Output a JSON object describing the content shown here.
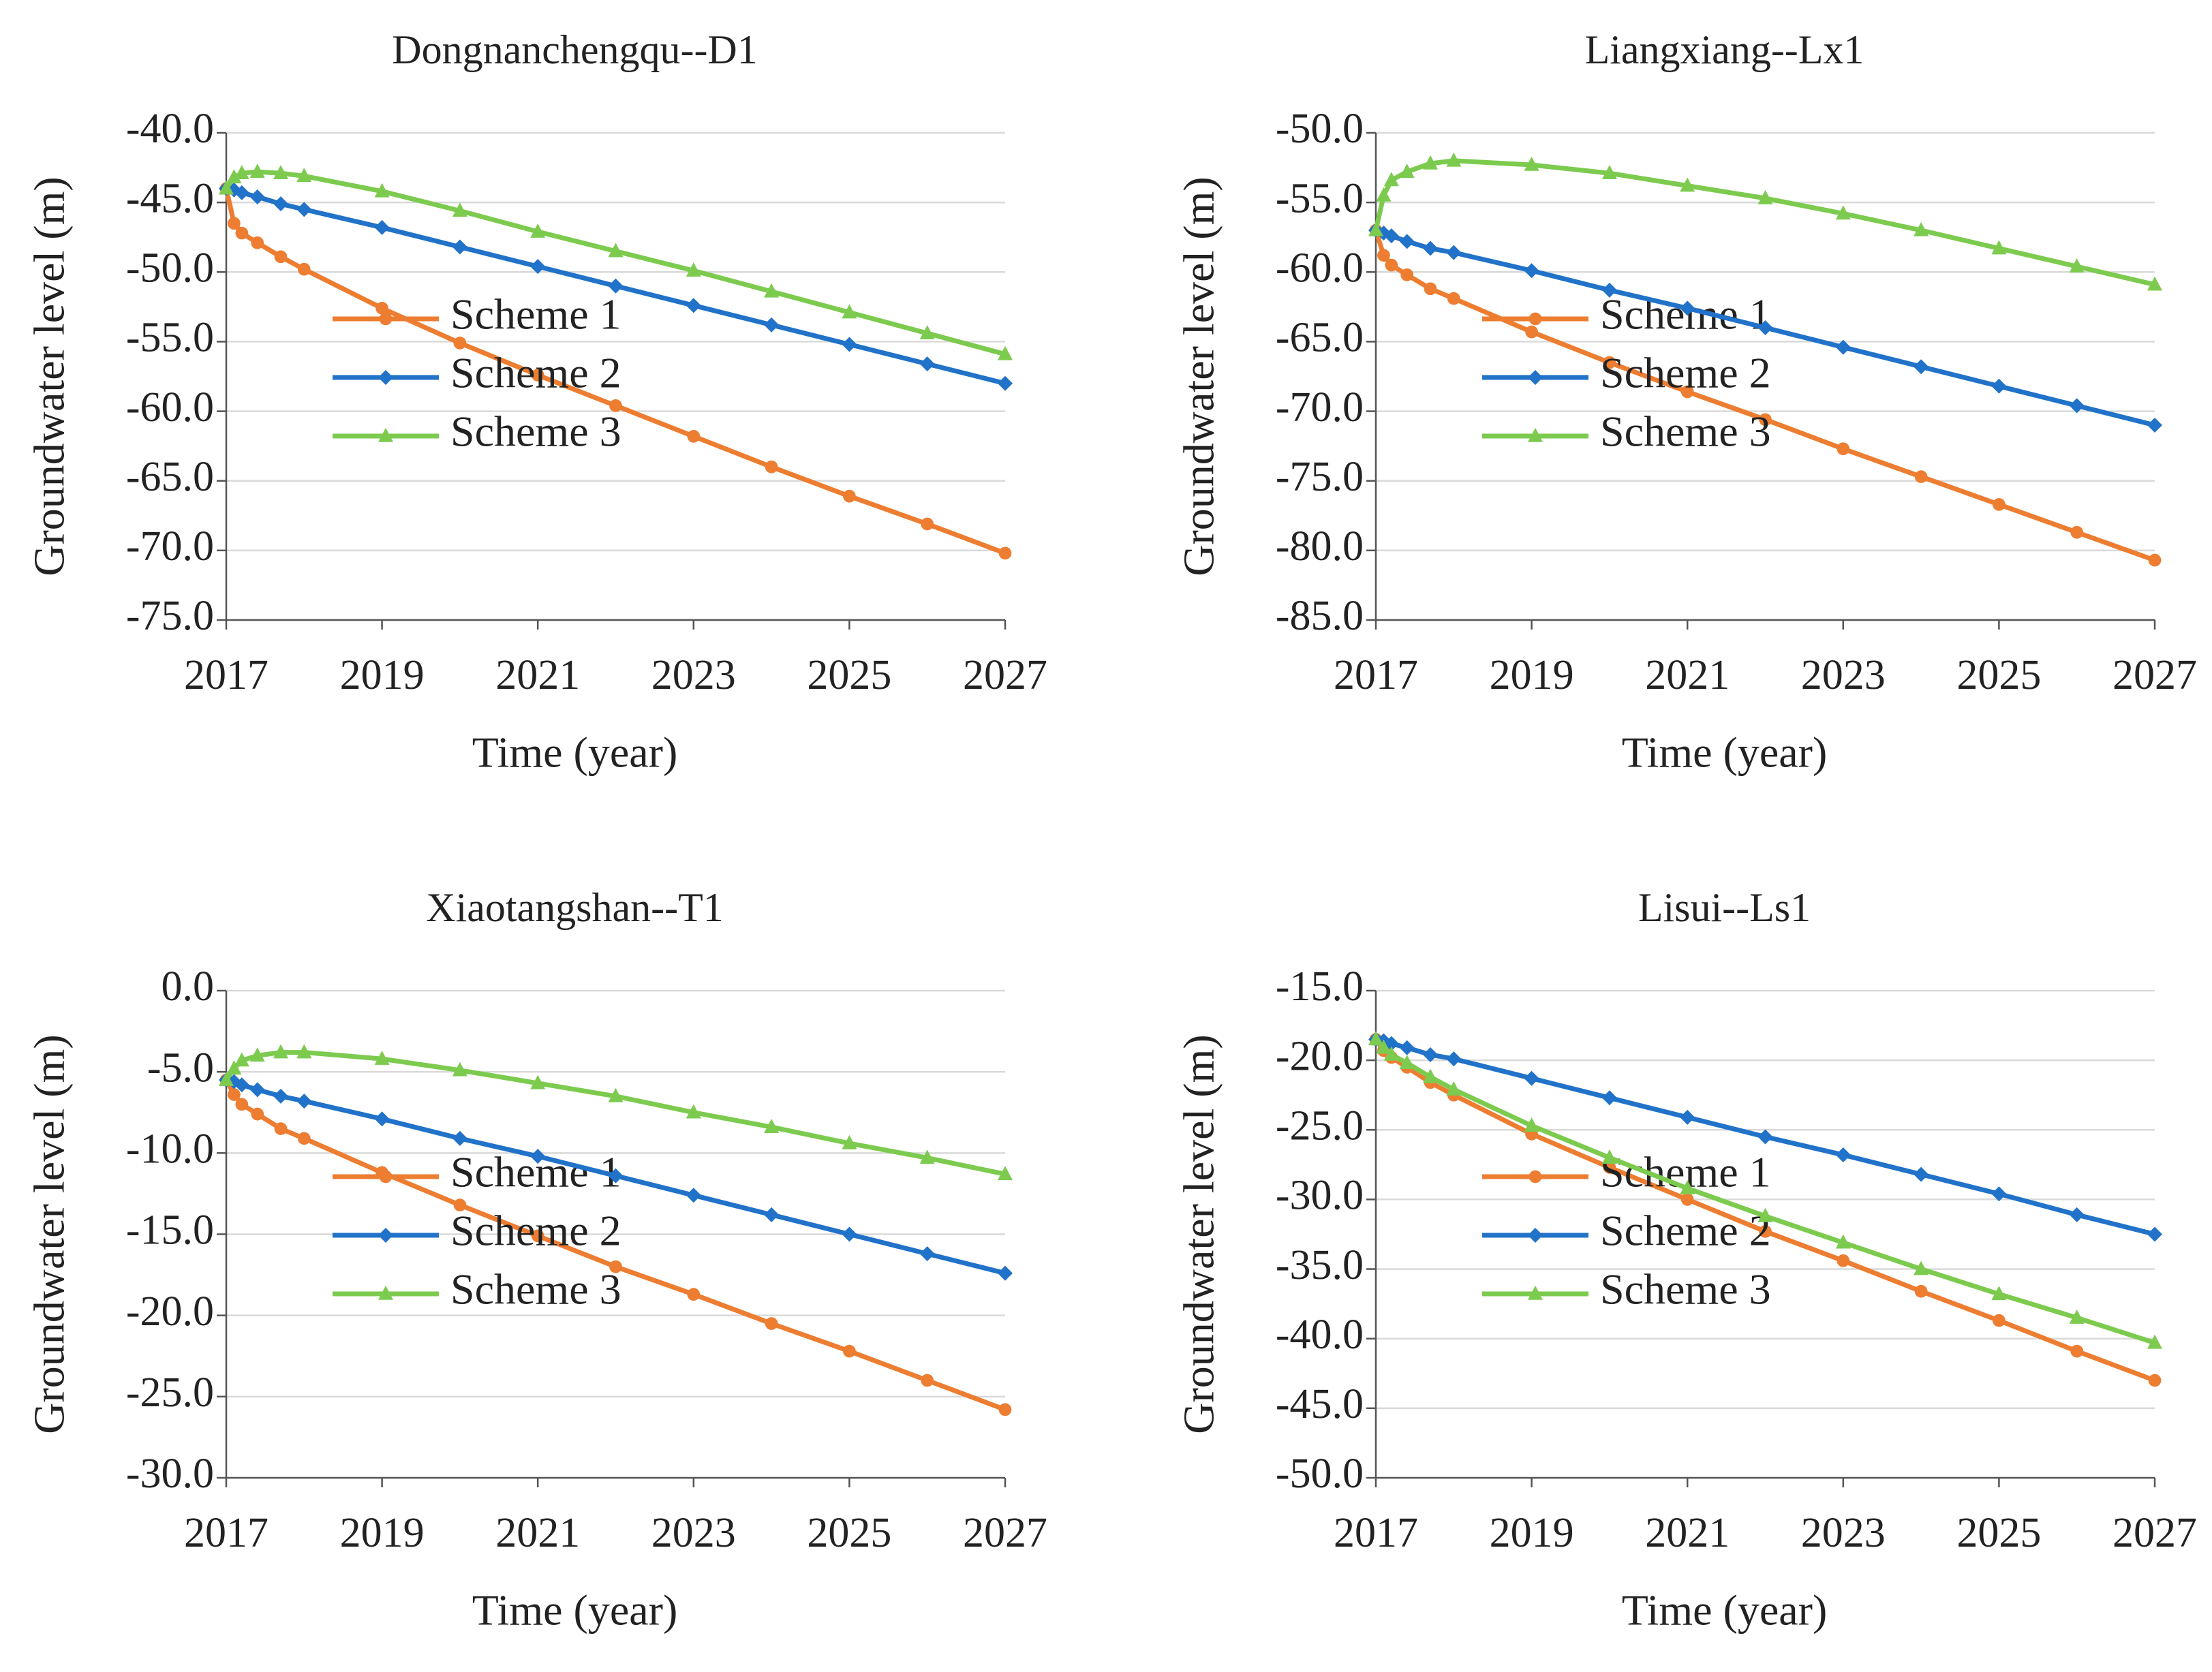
{
  "chart_data": [
    {
      "type": "line",
      "title": "Dongnanchengqu--D1",
      "x_label": "Time (year)",
      "y_label": "Groundwater level (m)",
      "x": [
        2017,
        2017.1,
        2017.2,
        2017.4,
        2017.7,
        2018,
        2019,
        2020,
        2021,
        2022,
        2023,
        2024,
        2025,
        2026,
        2027
      ],
      "xlim": [
        2017,
        2027
      ],
      "xticks": [
        2017,
        2019,
        2021,
        2023,
        2025,
        2027
      ],
      "ylim": [
        -75,
        -40
      ],
      "yticks": [
        {
          "value": -75,
          "label": "-75.0"
        },
        {
          "value": -70,
          "label": "-70.0"
        },
        {
          "value": -65,
          "label": "-65.0"
        },
        {
          "value": -60,
          "label": "-60.0"
        },
        {
          "value": -55,
          "label": "-55.0"
        },
        {
          "value": -50,
          "label": "-50.0"
        },
        {
          "value": -45,
          "label": "-45.0"
        },
        {
          "value": -40,
          "label": "-40.0"
        }
      ],
      "grid": true,
      "series": [
        {
          "name": "Scheme 1",
          "color": "#ED7D31",
          "marker": "circle",
          "values": [
            -44,
            -46.5,
            -47.2,
            -47.9,
            -48.9,
            -49.8,
            -52.6,
            -55.1,
            -57.4,
            -59.6,
            -61.8,
            -64,
            -66.1,
            -68.1,
            -70.2
          ]
        },
        {
          "name": "Scheme 2",
          "color": "#2172C9",
          "marker": "diamond",
          "values": [
            -44,
            -44.1,
            -44.3,
            -44.6,
            -45.1,
            -45.5,
            -46.8,
            -48.2,
            -49.6,
            -51,
            -52.4,
            -53.8,
            -55.2,
            -56.6,
            -58
          ]
        },
        {
          "name": "Scheme 3",
          "color": "#7CCB4F",
          "marker": "triangle",
          "values": [
            -44,
            -43.2,
            -42.9,
            -42.8,
            -42.9,
            -43.1,
            -44.2,
            -45.6,
            -47.1,
            -48.5,
            -49.9,
            -51.4,
            -52.9,
            -54.4,
            -55.9
          ]
        }
      ]
    },
    {
      "type": "line",
      "title": "Liangxiang--Lx1",
      "x_label": "Time (year)",
      "y_label": "Groundwater level (m)",
      "x": [
        2017,
        2017.1,
        2017.2,
        2017.4,
        2017.7,
        2018,
        2019,
        2020,
        2021,
        2022,
        2023,
        2024,
        2025,
        2026,
        2027
      ],
      "xlim": [
        2017,
        2027
      ],
      "xticks": [
        2017,
        2019,
        2021,
        2023,
        2025,
        2027
      ],
      "ylim": [
        -85,
        -50
      ],
      "yticks": [
        {
          "value": -85,
          "label": "-85.0"
        },
        {
          "value": -80,
          "label": "-80.0"
        },
        {
          "value": -75,
          "label": "-75.0"
        },
        {
          "value": -70,
          "label": "-70.0"
        },
        {
          "value": -65,
          "label": "-65.0"
        },
        {
          "value": -60,
          "label": "-60.0"
        },
        {
          "value": -55,
          "label": "-55.0"
        },
        {
          "value": -50,
          "label": "-50.0"
        }
      ],
      "grid": true,
      "series": [
        {
          "name": "Scheme 1",
          "color": "#ED7D31",
          "marker": "circle",
          "values": [
            -57,
            -58.8,
            -59.5,
            -60.2,
            -61.2,
            -61.9,
            -64.3,
            -66.5,
            -68.6,
            -70.6,
            -72.7,
            -74.7,
            -76.7,
            -78.7,
            -80.7
          ]
        },
        {
          "name": "Scheme 2",
          "color": "#2172C9",
          "marker": "diamond",
          "values": [
            -57,
            -57.2,
            -57.4,
            -57.8,
            -58.3,
            -58.6,
            -59.9,
            -61.3,
            -62.6,
            -64,
            -65.4,
            -66.8,
            -68.2,
            -69.6,
            -71
          ]
        },
        {
          "name": "Scheme 3",
          "color": "#7CCB4F",
          "marker": "triangle",
          "values": [
            -57,
            -54.5,
            -53.4,
            -52.8,
            -52.2,
            -52,
            -52.3,
            -52.9,
            -53.8,
            -54.7,
            -55.8,
            -57,
            -58.3,
            -59.6,
            -60.9
          ]
        }
      ]
    },
    {
      "type": "line",
      "title": "Xiaotangshan--T1",
      "x_label": "Time (year)",
      "y_label": "Groundwater level (m)",
      "x": [
        2017,
        2017.1,
        2017.2,
        2017.4,
        2017.7,
        2018,
        2019,
        2020,
        2021,
        2022,
        2023,
        2024,
        2025,
        2026,
        2027
      ],
      "xlim": [
        2017,
        2027
      ],
      "xticks": [
        2017,
        2019,
        2021,
        2023,
        2025,
        2027
      ],
      "ylim": [
        -30,
        0
      ],
      "yticks": [
        {
          "value": -30,
          "label": "-30.0"
        },
        {
          "value": -25,
          "label": "-25.0"
        },
        {
          "value": -20,
          "label": "-20.0"
        },
        {
          "value": -15,
          "label": "-15.0"
        },
        {
          "value": -10,
          "label": "-10.0"
        },
        {
          "value": -5,
          "label": "-5.0"
        },
        {
          "value": 0,
          "label": "0.0"
        }
      ],
      "grid": true,
      "series": [
        {
          "name": "Scheme 1",
          "color": "#ED7D31",
          "marker": "circle",
          "values": [
            -5.5,
            -6.4,
            -7,
            -7.6,
            -8.5,
            -9.1,
            -11.2,
            -13.2,
            -15.1,
            -17,
            -18.7,
            -20.5,
            -22.2,
            -24,
            -25.8
          ]
        },
        {
          "name": "Scheme 2",
          "color": "#2172C9",
          "marker": "diamond",
          "values": [
            -5.5,
            -5.6,
            -5.8,
            -6.1,
            -6.5,
            -6.8,
            -7.9,
            -9.1,
            -10.2,
            -11.4,
            -12.6,
            -13.8,
            -15,
            -16.2,
            -17.4
          ]
        },
        {
          "name": "Scheme 3",
          "color": "#7CCB4F",
          "marker": "triangle",
          "values": [
            -5.5,
            -4.8,
            -4.3,
            -4,
            -3.8,
            -3.8,
            -4.2,
            -4.9,
            -5.7,
            -6.5,
            -7.5,
            -8.4,
            -9.4,
            -10.3,
            -11.3
          ]
        }
      ]
    },
    {
      "type": "line",
      "title": "Lisui--Ls1",
      "x_label": "Time (year)",
      "y_label": "Groundwater level (m)",
      "x": [
        2017,
        2017.1,
        2017.2,
        2017.4,
        2017.7,
        2018,
        2019,
        2020,
        2021,
        2022,
        2023,
        2024,
        2025,
        2026,
        2027
      ],
      "xlim": [
        2017,
        2027
      ],
      "xticks": [
        2017,
        2019,
        2021,
        2023,
        2025,
        2027
      ],
      "ylim": [
        -50,
        -15
      ],
      "yticks": [
        {
          "value": -50,
          "label": "-50.0"
        },
        {
          "value": -45,
          "label": "-45.0"
        },
        {
          "value": -40,
          "label": "-40.0"
        },
        {
          "value": -35,
          "label": "-35.0"
        },
        {
          "value": -30,
          "label": "-30.0"
        },
        {
          "value": -25,
          "label": "-25.0"
        },
        {
          "value": -20,
          "label": "-20.0"
        },
        {
          "value": -15,
          "label": "-15.0"
        }
      ],
      "grid": true,
      "series": [
        {
          "name": "Scheme 1",
          "color": "#ED7D31",
          "marker": "circle",
          "values": [
            -18.5,
            -19.3,
            -19.8,
            -20.5,
            -21.6,
            -22.5,
            -25.3,
            -27.7,
            -30,
            -32.3,
            -34.4,
            -36.6,
            -38.7,
            -40.9,
            -43
          ]
        },
        {
          "name": "Scheme 2",
          "color": "#2172C9",
          "marker": "diamond",
          "values": [
            -18.5,
            -18.6,
            -18.8,
            -19.1,
            -19.6,
            -19.9,
            -21.3,
            -22.7,
            -24.1,
            -25.5,
            -26.8,
            -28.2,
            -29.6,
            -31.1,
            -32.5
          ]
        },
        {
          "name": "Scheme 3",
          "color": "#7CCB4F",
          "marker": "triangle",
          "values": [
            -18.5,
            -19.1,
            -19.6,
            -20.2,
            -21.2,
            -22.1,
            -24.7,
            -27,
            -29.2,
            -31.2,
            -33.1,
            -35,
            -36.8,
            -38.5,
            -40.3
          ]
        }
      ]
    }
  ]
}
